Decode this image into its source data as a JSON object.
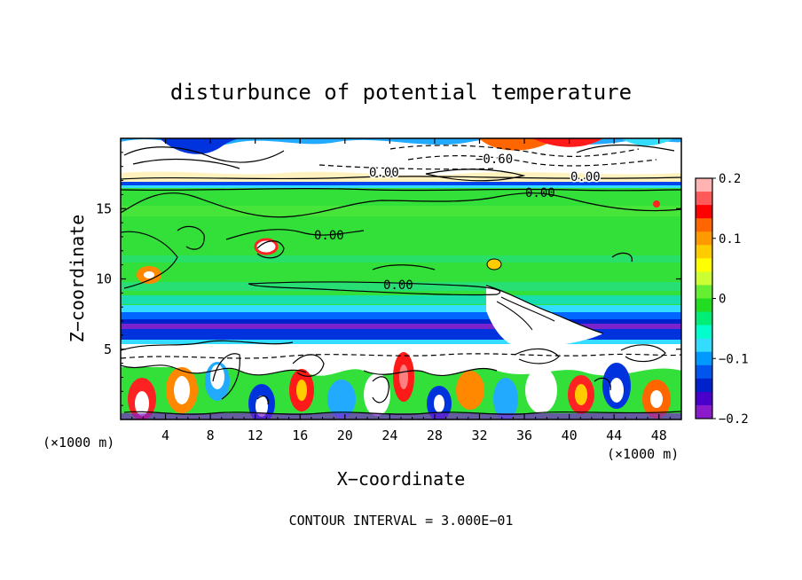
{
  "chart_data": {
    "type": "heatmap",
    "title": "disturbunce of potential temperature",
    "xlabel": "X−coordinate",
    "ylabel": "Z−coordinate",
    "x_unit_left": "(×1000 m)",
    "x_unit_right": "(×1000 m)",
    "xlim": [
      0,
      50
    ],
    "ylim": [
      0,
      20
    ],
    "xticks": [
      "4",
      "8",
      "12",
      "16",
      "20",
      "24",
      "28",
      "32",
      "36",
      "40",
      "44",
      "48"
    ],
    "yticks": [
      "5",
      "10",
      "15"
    ],
    "colorbar": {
      "range": [
        -0.2,
        0.2
      ],
      "labels": [
        "0.2",
        "0.1",
        "0",
        "−0.1",
        "−0.2"
      ],
      "colors": [
        "#ffb3b3",
        "#ff5a5a",
        "#ff0000",
        "#ff6600",
        "#ff9900",
        "#ffcc00",
        "#ffff00",
        "#ccff33",
        "#66ee33",
        "#22dd22",
        "#00ee77",
        "#00ffcc",
        "#33ddff",
        "#0099ff",
        "#0055ee",
        "#0022cc",
        "#4a00cc",
        "#8a1acc"
      ]
    },
    "contour_labels": [
      "−0.60",
      "0.00",
      "0.00",
      "0.00",
      "0.00",
      "0.00"
    ],
    "contour_interval": "CONTOUR INTERVAL = 3.000E−01",
    "grid": false
  }
}
